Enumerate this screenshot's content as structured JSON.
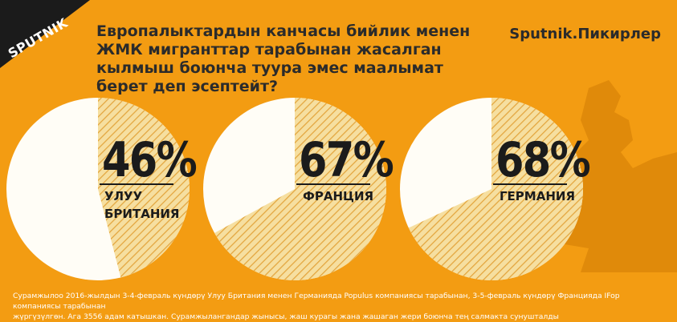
{
  "brand": {
    "logo": "SPUTNIK",
    "tagline": "Sputnik.Пикирлер"
  },
  "title": "Европалыктардын канчасы бийлик менен ЖМК мигранттар тарабынан жасалган кылмыш боюнча туура эмес маалымат берет деп эсептейт?",
  "colors": {
    "background": "#f39c12",
    "pie_remainder": "#fffdf6",
    "pie_value_fill": "#f6dfa0",
    "pie_hatch": "#e3a53d",
    "text_dark": "#1b1b1b"
  },
  "chart_data": {
    "type": "pie",
    "title": "Европалыктардын канчасы бийлик менен ЖМК мигранттар тарабынан жасалган кылмыш боюнча туура эмес маалымат берет деп эсептейт?",
    "series": [
      {
        "name": "УЛУУ БРИТАНИЯ",
        "label_lines": [
          "УЛУУ",
          "БРИТАНИЯ"
        ],
        "value": 46,
        "display": "46%"
      },
      {
        "name": "ФРАНЦИЯ",
        "label_lines": [
          "ФРАНЦИЯ"
        ],
        "value": 67,
        "display": "67%"
      },
      {
        "name": "ГЕРМАНИЯ",
        "label_lines": [
          "ГЕРМАНИЯ"
        ],
        "value": 68,
        "display": "68%"
      }
    ]
  },
  "footnote": {
    "line1": "Сурамжылоо 2016-жылдын 3-4-февраль күндөрү Улуу Британия менен Германияда Populus компаниясы тарабынан, 3-5-февраль күндөрү Францияда IFop компаниясы тарабынан",
    "line2": "жүргүзүлгөн. Ага 3556 адам катышкан. Сурамжылангандар жынысы, жаш курагы жана жашаган жери боюнча тең салмакта сунушталды"
  }
}
